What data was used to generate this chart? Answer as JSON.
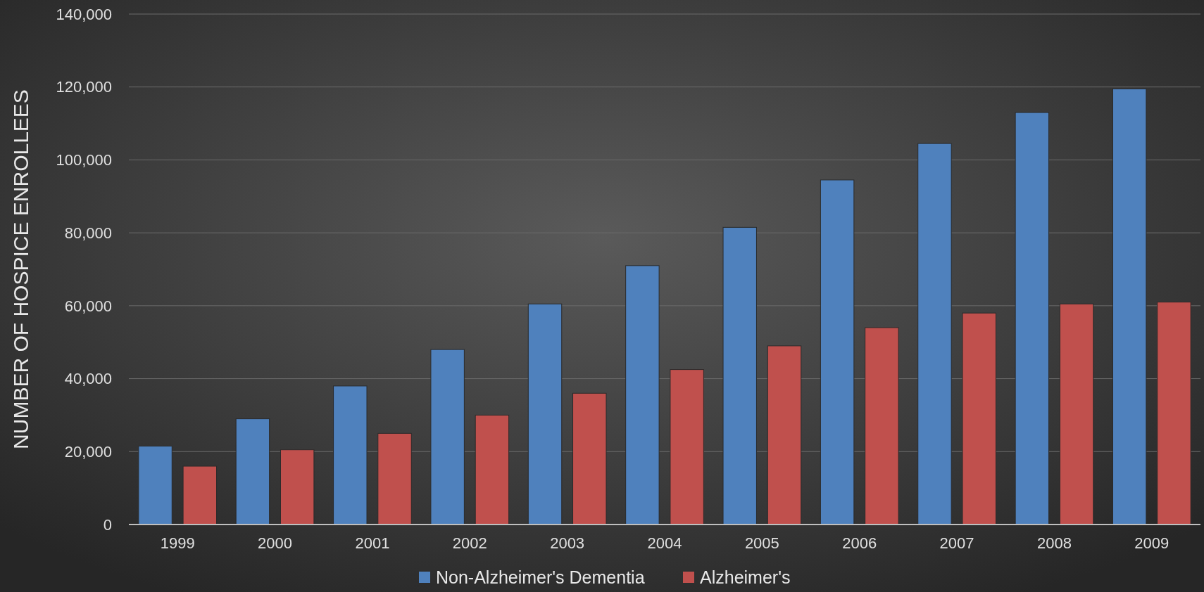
{
  "chart_data": {
    "type": "bar",
    "ylabel": "NUMBER OF HOSPICE ENROLLEES",
    "categories": [
      "1999",
      "2000",
      "2001",
      "2002",
      "2003",
      "2004",
      "2005",
      "2006",
      "2007",
      "2008",
      "2009"
    ],
    "series": [
      {
        "name": "Non-Alzheimer's Dementia",
        "color": "#4f81bd",
        "values": [
          21500,
          29000,
          38000,
          48000,
          60500,
          71000,
          81500,
          94500,
          104500,
          113000,
          119500
        ]
      },
      {
        "name": "Alzheimer's",
        "color": "#c0504d",
        "values": [
          16000,
          20500,
          25000,
          30000,
          36000,
          42500,
          49000,
          54000,
          58000,
          60500,
          61000
        ]
      }
    ],
    "ylim": [
      0,
      140000
    ],
    "yticks": [
      {
        "value": 0,
        "label": "0"
      },
      {
        "value": 20000,
        "label": "20,000"
      },
      {
        "value": 40000,
        "label": "40,000"
      },
      {
        "value": 60000,
        "label": "60,000"
      },
      {
        "value": 80000,
        "label": "80,000"
      },
      {
        "value": 100000,
        "label": "100,000"
      },
      {
        "value": 120000,
        "label": "120,000"
      },
      {
        "value": 140000,
        "label": "140,000"
      }
    ],
    "grid": true,
    "legend": "bottom"
  }
}
